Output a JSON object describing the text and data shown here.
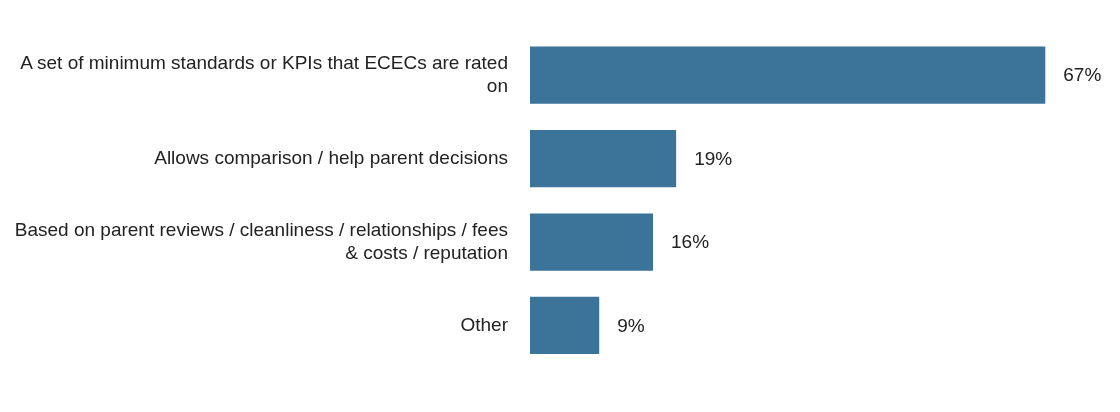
{
  "chart_data": {
    "type": "bar",
    "orientation": "horizontal",
    "categories": [
      "A set of minimum standards or KPIs that ECECs are rated on",
      "Allows comparison / help parent decisions",
      "Based on parent reviews / cleanliness / relationships / fees & costs / reputation",
      "Other"
    ],
    "values": [
      67,
      19,
      16,
      9
    ],
    "value_labels": [
      "67%",
      "19%",
      "16%",
      "9%"
    ],
    "color": "#3b7399",
    "grid": false,
    "legend": false
  }
}
